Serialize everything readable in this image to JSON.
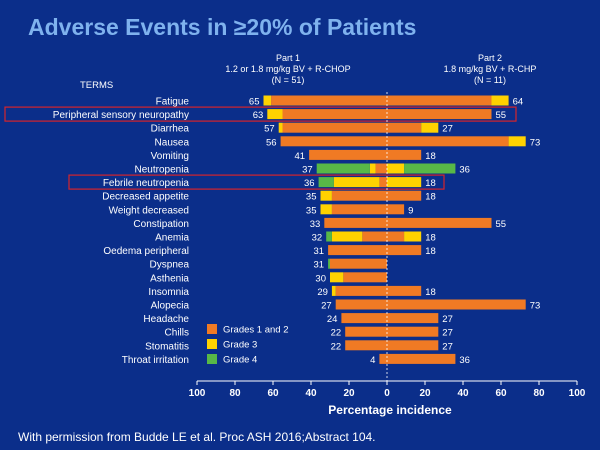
{
  "slide": {
    "title": "Adverse Events in ≥20% of Patients",
    "footer": "With permission from Budde LE et al. Proc ASH 2016;Abstract 104."
  },
  "chart_data": {
    "type": "bar",
    "orientation": "horizontal-diverging",
    "terms_header": "TERMS",
    "xlabel": "Percentage incidence",
    "xlim": [
      -100,
      100
    ],
    "tick_labels": [
      "100",
      "80",
      "60",
      "40",
      "20",
      "0",
      "20",
      "40",
      "60",
      "80",
      "100"
    ],
    "left_header": [
      "Part 1",
      "1.2 or 1.8 mg/kg BV + R-CHOP",
      "(N = 51)"
    ],
    "right_header": [
      "Part 2",
      "1.8 mg/kg BV + R-CHP",
      "(N = 11)"
    ],
    "legend": [
      {
        "name": "Grades 1 and 2",
        "color": "#f07a24"
      },
      {
        "name": "Grade 3",
        "color": "#ffd200"
      },
      {
        "name": "Grade 4",
        "color": "#58b847"
      }
    ],
    "highlighted_terms": [
      "Peripheral sensory neuropathy",
      "Febrile neutropenia"
    ],
    "highlight_color": "#d4242c",
    "categories": [
      "Fatigue",
      "Peripheral sensory neuropathy",
      "Diarrhea",
      "Nausea",
      "Vomiting",
      "Neutropenia",
      "Febrile neutropenia",
      "Decreased appetite",
      "Weight decreased",
      "Constipation",
      "Anemia",
      "Oedema peripheral",
      "Dyspnea",
      "Asthenia",
      "Insomnia",
      "Alopecia",
      "Headache",
      "Chills",
      "Stomatitis",
      "Throat irritation"
    ],
    "part1": {
      "totals": [
        65,
        63,
        57,
        56,
        41,
        37,
        36,
        35,
        35,
        33,
        32,
        31,
        31,
        30,
        29,
        27,
        24,
        22,
        22,
        4
      ],
      "grade12": [
        61,
        55,
        55,
        56,
        41,
        6,
        4,
        29,
        29,
        33,
        13,
        31,
        30,
        23,
        27,
        27,
        24,
        22,
        22,
        4
      ],
      "grade3": [
        4,
        8,
        2,
        0,
        0,
        3,
        24,
        6,
        6,
        0,
        16,
        0,
        0,
        7,
        2,
        0,
        0,
        0,
        0,
        0
      ],
      "grade4": [
        0,
        0,
        0,
        0,
        0,
        28,
        8,
        0,
        0,
        0,
        3,
        0,
        1,
        0,
        0,
        0,
        0,
        0,
        0,
        0
      ]
    },
    "part2": {
      "totals": [
        64,
        55,
        27,
        73,
        18,
        36,
        18,
        18,
        9,
        55,
        18,
        18,
        null,
        null,
        18,
        73,
        27,
        27,
        27,
        36
      ],
      "grade12": [
        55,
        55,
        18,
        64,
        18,
        0,
        0,
        18,
        9,
        55,
        9,
        18,
        0,
        0,
        18,
        73,
        27,
        27,
        27,
        36
      ],
      "grade3": [
        9,
        0,
        9,
        9,
        0,
        9,
        18,
        0,
        0,
        0,
        9,
        0,
        0,
        0,
        0,
        0,
        0,
        0,
        0,
        0
      ],
      "grade4": [
        0,
        0,
        0,
        0,
        0,
        27,
        0,
        0,
        0,
        0,
        0,
        0,
        0,
        0,
        0,
        0,
        0,
        0,
        0,
        0
      ]
    }
  }
}
